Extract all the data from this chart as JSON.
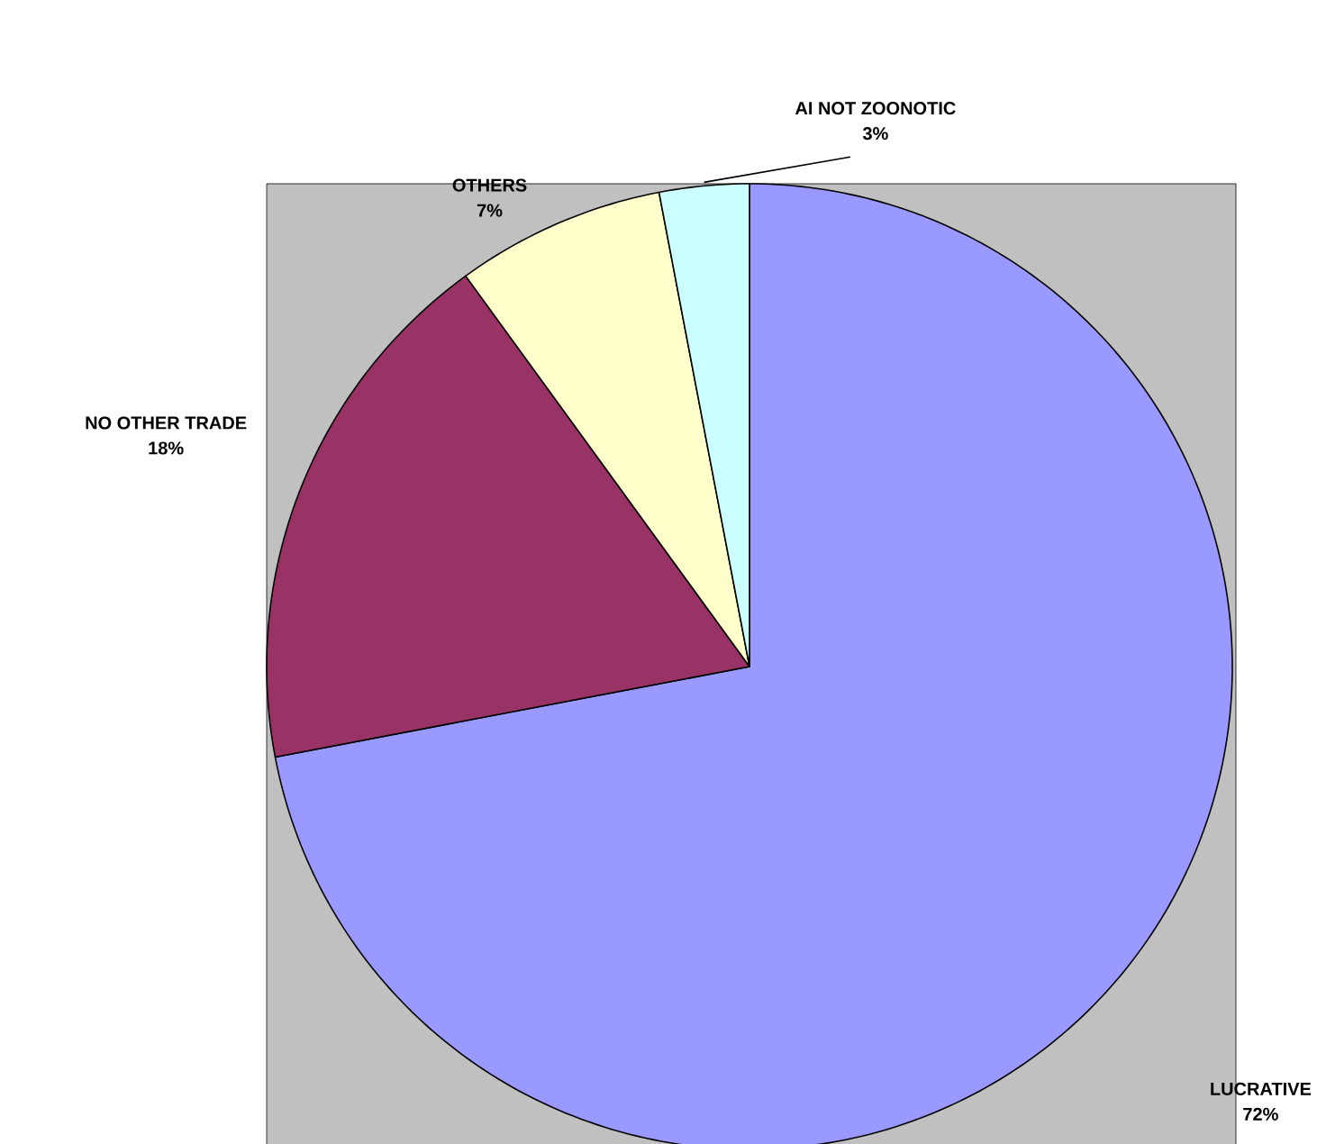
{
  "chart_data": {
    "type": "pie",
    "categories": [
      "LUCRATIVE",
      "NO OTHER TRADE",
      "OTHERS",
      "AI NOT ZOONOTIC"
    ],
    "values": [
      72,
      18,
      7,
      3
    ],
    "colors": [
      "#9999ff",
      "#993366",
      "#ffffcc",
      "#ccffff"
    ],
    "value_labels": [
      "72%",
      "18%",
      "7%",
      "3%"
    ]
  }
}
